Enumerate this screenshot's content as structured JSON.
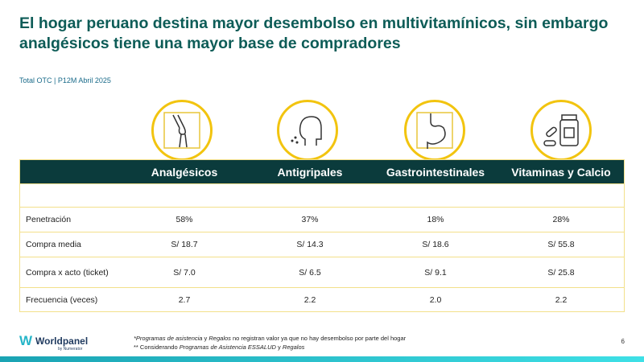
{
  "title": "El hogar peruano destina mayor desembolso en multivitamínicos, sin embargo analgésicos tiene una mayor base de compradores",
  "subtitle": "Total OTC | P12M Abril 2025",
  "columns": [
    "Analgésicos",
    "Antigripales",
    "Gastrointestinales",
    "Vitaminas y Calcio"
  ],
  "icons": [
    "joint-icon",
    "head-sneeze-icon",
    "stomach-icon",
    "pills-bottle-icon"
  ],
  "rows": [
    {
      "label": "Penetración",
      "values": [
        "58%",
        "37%",
        "18%",
        "28%"
      ]
    },
    {
      "label": "Compra media",
      "values": [
        "S/ 18.7",
        "S/ 14.3",
        "S/ 18.6",
        "S/ 55.8"
      ]
    },
    {
      "label": "Compra x acto (ticket)",
      "values": [
        "S/ 7.0",
        "S/ 6.5",
        "S/ 9.1",
        "S/ 25.8"
      ]
    },
    {
      "label": "Frecuencia (veces)",
      "values": [
        "2.7",
        "2.2",
        "2.0",
        "2.2"
      ]
    }
  ],
  "footnotes": {
    "line1_italic": "*Programas de asistencia",
    "line1_y": " y ",
    "line1_italic2": "Regalos",
    "line1_rest": " no registran valor ya que no hay desembolso por parte del hogar",
    "line2_pre": "** Considerando ",
    "line2_italic": "Programas de Asistencia ESSALUD",
    "line2_y": " y ",
    "line2_italic2": "Regalos"
  },
  "logo": {
    "name": "Worldpanel",
    "by": "by Numerator"
  },
  "page_number": "6",
  "colors": {
    "title": "#0d5c57",
    "header_bg": "#0b3b3c",
    "accent": "#f2c40f"
  }
}
